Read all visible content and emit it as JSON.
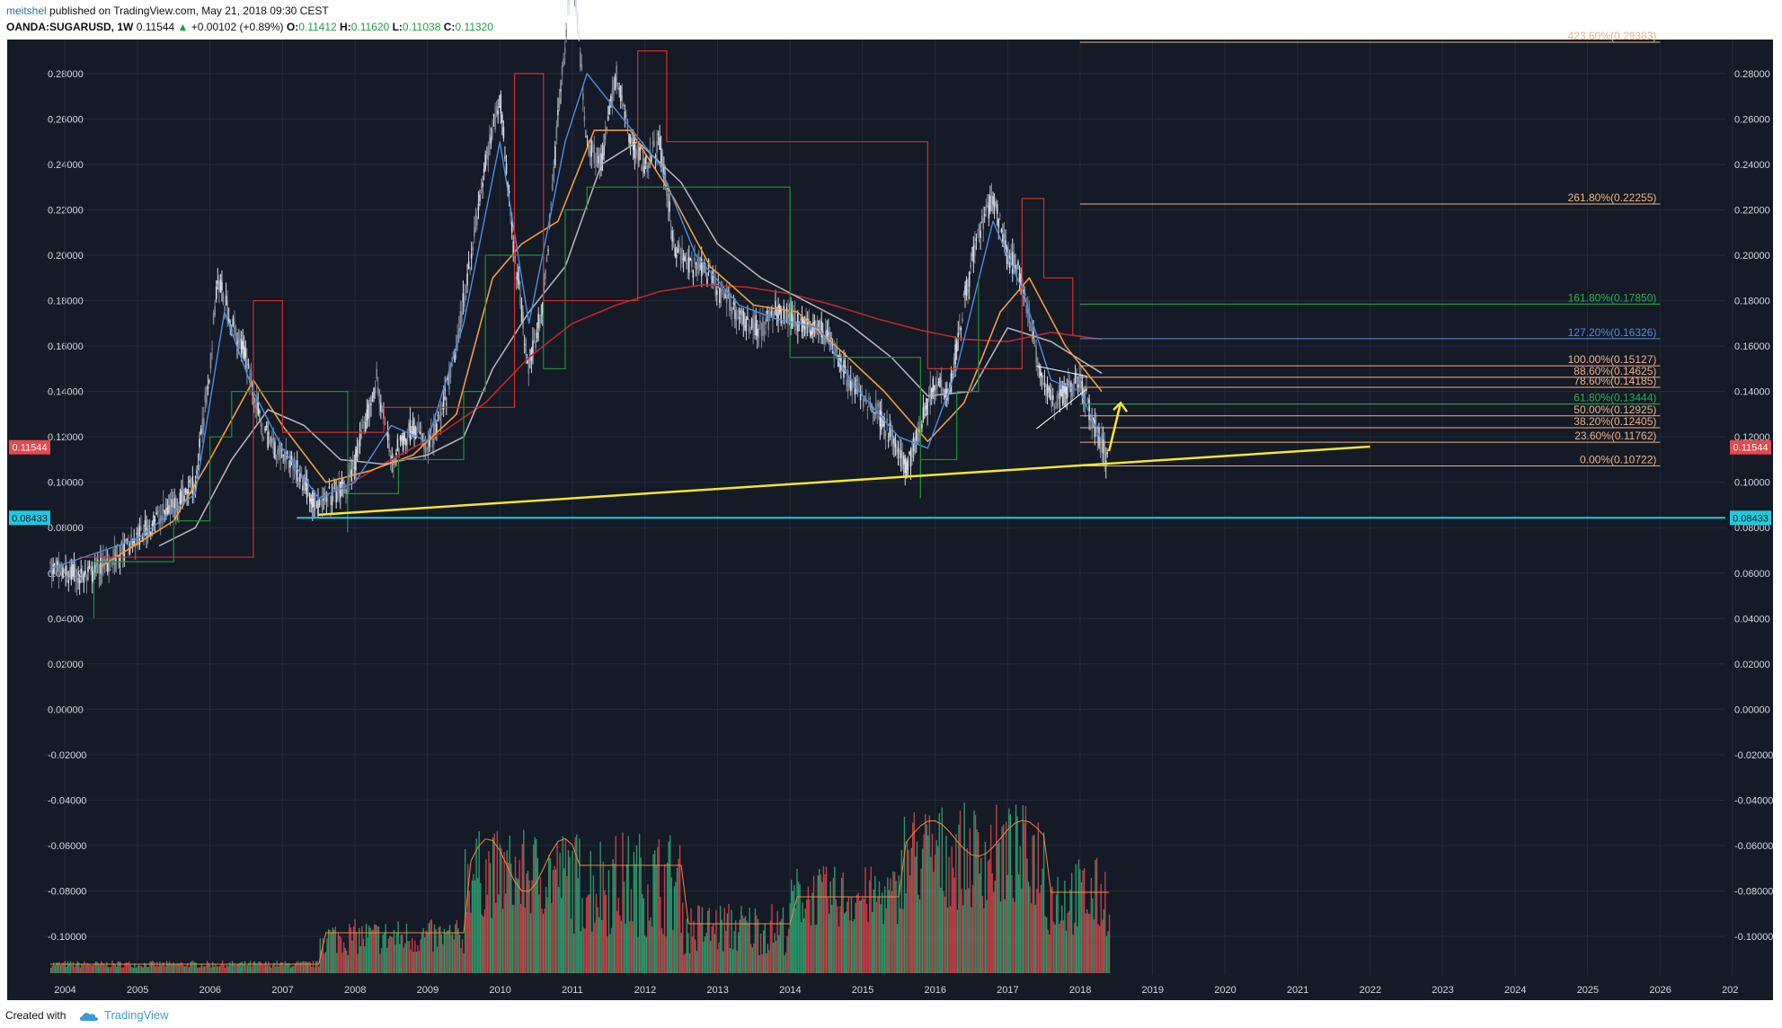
{
  "header": {
    "user": "meitshel",
    "published_text": "published on TradingView.com, May 21, 2018 09:30 CEST",
    "symbol": "OANDA:SUGARUSD, 1W",
    "last": "0.11544",
    "change": "+0.00102 (+0.89%)",
    "o_label": "O:",
    "o_value": "0.11412",
    "h_label": "H:",
    "h_value": "0.11620",
    "l_label": "L:",
    "l_value": "0.11038",
    "c_label": "C:",
    "c_value": "0.11320"
  },
  "footer": {
    "created_with": "Created with",
    "brand": "TradingView"
  },
  "colors": {
    "background": "#141a26",
    "grid": "#232c3d",
    "axis_text": "#d4d7de",
    "up": "#26a69a",
    "down": "#ef5350",
    "fast_ma": "#4a90e2",
    "mid_ma": "#f39c3d",
    "slow_ma": "#b6aeb6",
    "long_ma": "#c0262c",
    "trend": "#f5e72a",
    "support": "#22c9dd",
    "price_badge": "#e4494f",
    "support_badge": "#22c9dd"
  },
  "chart_data": {
    "type": "candlestick",
    "symbol": "OANDA:SUGARUSD",
    "interval": "1W",
    "x_ticks": [
      "2004",
      "2005",
      "2006",
      "2007",
      "2008",
      "2009",
      "2010",
      "2011",
      "2012",
      "2013",
      "2014",
      "2015",
      "2016",
      "2017",
      "2018",
      "2019",
      "2020",
      "2021",
      "2022",
      "2023",
      "2024",
      "2025",
      "2026",
      "202"
    ],
    "y_ticks": [
      "0.28000",
      "0.26000",
      "0.24000",
      "0.22000",
      "0.20000",
      "0.18000",
      "0.16000",
      "0.14000",
      "0.12000",
      "0.10000",
      "0.08000",
      "0.06000",
      "0.04000",
      "0.02000",
      "0.00000",
      "-0.02000",
      "-0.04000",
      "-0.06000",
      "-0.08000",
      "-0.10000"
    ],
    "ylim": [
      -0.117,
      0.295
    ],
    "xlim": [
      2003.7,
      2026.9
    ],
    "grid": true,
    "price_line": {
      "value": 0.11544,
      "label": "0.11544"
    },
    "support_line": {
      "value": 0.08433,
      "label": "0.08433",
      "x_start": 2007.2
    },
    "trend_line": {
      "x1": 2007.5,
      "y1": 0.0857,
      "x2": 2022.0,
      "y2": 0.1157
    },
    "arrow": {
      "x1": 2018.4,
      "y1": 0.1137,
      "x2": 2018.56,
      "y2": 0.135
    },
    "triangle": [
      {
        "x1": 2017.4,
        "y1": 0.1236,
        "x2": 2018.1,
        "y2": 0.1412
      },
      {
        "x1": 2017.4,
        "y1": 0.1512,
        "x2": 2018.1,
        "y2": 0.1467
      }
    ],
    "fib_start_x": 2018.0,
    "fib_end_x": 2026.0,
    "fib_levels": [
      {
        "label": "423.60%(0.29383)",
        "value": 0.29383,
        "color": "#f0b185"
      },
      {
        "label": "261.80%(0.22255)",
        "value": 0.22255,
        "color": "#f0b185"
      },
      {
        "label": "161.80%(0.17850)",
        "value": 0.1785,
        "color": "#27b34b"
      },
      {
        "label": "127.20%(0.16326)",
        "value": 0.16326,
        "color": "#4f8fe0"
      },
      {
        "label": "100.00%(0.15127)",
        "value": 0.15127,
        "color": "#f0b185"
      },
      {
        "label": "88.60%(0.14625)",
        "value": 0.14625,
        "color": "#f0b185"
      },
      {
        "label": "78.60%(0.14185)",
        "value": 0.14185,
        "color": "#f0b185"
      },
      {
        "label": "61.80%(0.13444)",
        "value": 0.13444,
        "color": "#27b34b"
      },
      {
        "label": "50.00%(0.12925)",
        "value": 0.12925,
        "color": "#f0b185"
      },
      {
        "label": "38.20%(0.12405)",
        "value": 0.12405,
        "color": "#f0b185"
      },
      {
        "label": "23.60%(0.11762)",
        "value": 0.11762,
        "color": "#f0b185"
      },
      {
        "label": "0.00%(0.10722)",
        "value": 0.10722,
        "color": "#f0b185"
      }
    ],
    "price_path": [
      [
        2003.8,
        0.062
      ],
      [
        2004.0,
        0.06
      ],
      [
        2004.3,
        0.058
      ],
      [
        2004.6,
        0.065
      ],
      [
        2004.9,
        0.072
      ],
      [
        2005.2,
        0.082
      ],
      [
        2005.5,
        0.09
      ],
      [
        2005.8,
        0.1
      ],
      [
        2006.0,
        0.15
      ],
      [
        2006.1,
        0.19
      ],
      [
        2006.3,
        0.17
      ],
      [
        2006.5,
        0.155
      ],
      [
        2006.7,
        0.125
      ],
      [
        2006.9,
        0.115
      ],
      [
        2007.1,
        0.11
      ],
      [
        2007.3,
        0.1
      ],
      [
        2007.5,
        0.088
      ],
      [
        2007.7,
        0.095
      ],
      [
        2007.9,
        0.098
      ],
      [
        2008.1,
        0.12
      ],
      [
        2008.3,
        0.145
      ],
      [
        2008.5,
        0.11
      ],
      [
        2008.8,
        0.125
      ],
      [
        2009.0,
        0.115
      ],
      [
        2009.2,
        0.13
      ],
      [
        2009.4,
        0.16
      ],
      [
        2009.6,
        0.2
      ],
      [
        2009.8,
        0.24
      ],
      [
        2010.0,
        0.27
      ],
      [
        2010.2,
        0.2
      ],
      [
        2010.4,
        0.15
      ],
      [
        2010.6,
        0.18
      ],
      [
        2010.8,
        0.26
      ],
      [
        2011.0,
        0.33
      ],
      [
        2011.2,
        0.25
      ],
      [
        2011.4,
        0.24
      ],
      [
        2011.6,
        0.28
      ],
      [
        2011.8,
        0.25
      ],
      [
        2012.0,
        0.24
      ],
      [
        2012.2,
        0.25
      ],
      [
        2012.4,
        0.205
      ],
      [
        2012.6,
        0.195
      ],
      [
        2012.8,
        0.195
      ],
      [
        2013.0,
        0.185
      ],
      [
        2013.2,
        0.178
      ],
      [
        2013.4,
        0.17
      ],
      [
        2013.6,
        0.168
      ],
      [
        2013.8,
        0.175
      ],
      [
        2014.0,
        0.172
      ],
      [
        2014.2,
        0.17
      ],
      [
        2014.4,
        0.168
      ],
      [
        2014.6,
        0.16
      ],
      [
        2014.8,
        0.145
      ],
      [
        2015.0,
        0.138
      ],
      [
        2015.2,
        0.132
      ],
      [
        2015.4,
        0.12
      ],
      [
        2015.6,
        0.105
      ],
      [
        2015.8,
        0.125
      ],
      [
        2016.0,
        0.145
      ],
      [
        2016.2,
        0.14
      ],
      [
        2016.4,
        0.18
      ],
      [
        2016.6,
        0.21
      ],
      [
        2016.8,
        0.225
      ],
      [
        2017.0,
        0.2
      ],
      [
        2017.2,
        0.19
      ],
      [
        2017.4,
        0.155
      ],
      [
        2017.6,
        0.135
      ],
      [
        2017.8,
        0.14
      ],
      [
        2018.0,
        0.145
      ],
      [
        2018.2,
        0.125
      ],
      [
        2018.4,
        0.108
      ]
    ],
    "ma_fast": [
      [
        2003.8,
        0.062
      ],
      [
        2005.0,
        0.075
      ],
      [
        2005.8,
        0.095
      ],
      [
        2006.2,
        0.175
      ],
      [
        2006.6,
        0.14
      ],
      [
        2007.0,
        0.115
      ],
      [
        2007.5,
        0.093
      ],
      [
        2008.0,
        0.1
      ],
      [
        2008.5,
        0.125
      ],
      [
        2009.0,
        0.118
      ],
      [
        2009.5,
        0.17
      ],
      [
        2010.0,
        0.25
      ],
      [
        2010.4,
        0.17
      ],
      [
        2010.9,
        0.25
      ],
      [
        2011.2,
        0.28
      ],
      [
        2011.7,
        0.26
      ],
      [
        2012.2,
        0.24
      ],
      [
        2012.7,
        0.2
      ],
      [
        2013.3,
        0.178
      ],
      [
        2013.8,
        0.172
      ],
      [
        2014.4,
        0.168
      ],
      [
        2014.9,
        0.142
      ],
      [
        2015.5,
        0.12
      ],
      [
        2015.9,
        0.115
      ],
      [
        2016.3,
        0.15
      ],
      [
        2016.8,
        0.215
      ],
      [
        2017.2,
        0.185
      ],
      [
        2017.6,
        0.145
      ],
      [
        2018.0,
        0.14
      ],
      [
        2018.3,
        0.118
      ]
    ],
    "ma_mid": [
      [
        2004.5,
        0.063
      ],
      [
        2005.5,
        0.083
      ],
      [
        2006.0,
        0.11
      ],
      [
        2006.6,
        0.145
      ],
      [
        2007.0,
        0.125
      ],
      [
        2007.6,
        0.1
      ],
      [
        2008.2,
        0.105
      ],
      [
        2008.8,
        0.112
      ],
      [
        2009.4,
        0.13
      ],
      [
        2009.9,
        0.19
      ],
      [
        2010.3,
        0.205
      ],
      [
        2010.8,
        0.215
      ],
      [
        2011.3,
        0.255
      ],
      [
        2011.8,
        0.255
      ],
      [
        2012.4,
        0.225
      ],
      [
        2012.9,
        0.195
      ],
      [
        2013.5,
        0.178
      ],
      [
        2014.1,
        0.175
      ],
      [
        2014.7,
        0.158
      ],
      [
        2015.3,
        0.14
      ],
      [
        2015.9,
        0.118
      ],
      [
        2016.4,
        0.135
      ],
      [
        2016.9,
        0.175
      ],
      [
        2017.3,
        0.19
      ],
      [
        2017.8,
        0.16
      ],
      [
        2018.3,
        0.14
      ]
    ],
    "ma_slow": [
      [
        2005.3,
        0.072
      ],
      [
        2005.8,
        0.08
      ],
      [
        2006.3,
        0.11
      ],
      [
        2006.8,
        0.132
      ],
      [
        2007.3,
        0.125
      ],
      [
        2007.8,
        0.11
      ],
      [
        2008.4,
        0.108
      ],
      [
        2009.0,
        0.112
      ],
      [
        2009.5,
        0.12
      ],
      [
        2009.9,
        0.15
      ],
      [
        2010.4,
        0.175
      ],
      [
        2010.9,
        0.195
      ],
      [
        2011.4,
        0.24
      ],
      [
        2011.9,
        0.25
      ],
      [
        2012.5,
        0.232
      ],
      [
        2013.0,
        0.205
      ],
      [
        2013.6,
        0.19
      ],
      [
        2014.2,
        0.18
      ],
      [
        2014.8,
        0.17
      ],
      [
        2015.4,
        0.155
      ],
      [
        2015.9,
        0.138
      ],
      [
        2016.5,
        0.14
      ],
      [
        2017.0,
        0.168
      ],
      [
        2017.6,
        0.162
      ],
      [
        2018.3,
        0.148
      ]
    ],
    "ma_long": [
      [
        2007.8,
        0.097
      ],
      [
        2008.5,
        0.11
      ],
      [
        2009.2,
        0.122
      ],
      [
        2009.8,
        0.135
      ],
      [
        2010.4,
        0.155
      ],
      [
        2011.0,
        0.17
      ],
      [
        2011.6,
        0.178
      ],
      [
        2012.2,
        0.184
      ],
      [
        2012.8,
        0.187
      ],
      [
        2013.4,
        0.186
      ],
      [
        2014.0,
        0.183
      ],
      [
        2014.6,
        0.178
      ],
      [
        2015.2,
        0.172
      ],
      [
        2015.8,
        0.167
      ],
      [
        2016.4,
        0.163
      ],
      [
        2017.0,
        0.162
      ],
      [
        2017.6,
        0.166
      ],
      [
        2018.3,
        0.163
      ]
    ],
    "volume_base": -0.117,
    "volume_scale_note": "volume bars in bottom pane"
  }
}
